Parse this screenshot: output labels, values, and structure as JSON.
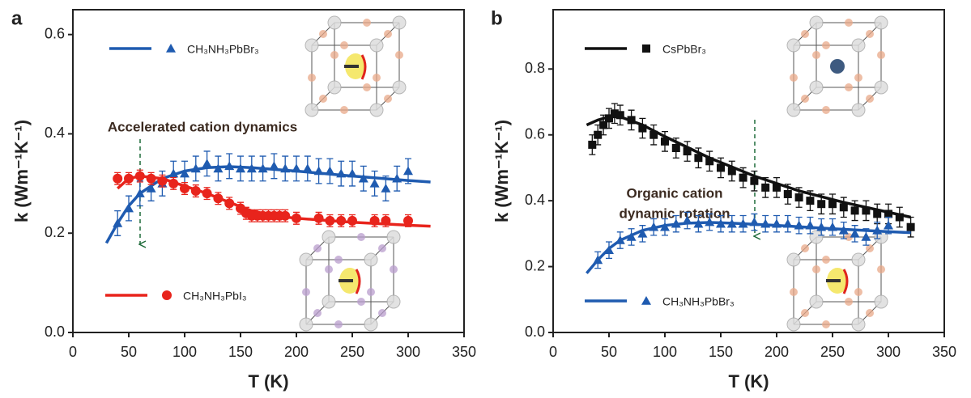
{
  "chart_data": [
    {
      "type": "scatter",
      "panel": "a",
      "xlabel": "T (K)",
      "ylabel": "k (Wm⁻¹K⁻¹)",
      "xlim": [
        0,
        350
      ],
      "xticks": [
        0,
        50,
        100,
        150,
        200,
        250,
        300,
        350
      ],
      "ylim": [
        0,
        0.65
      ],
      "yticks": [
        {
          "value": 0,
          "label": "0.0"
        },
        {
          "value": 0.2,
          "label": "0.2"
        },
        {
          "value": 0.4,
          "label": "0.4"
        },
        {
          "value": 0.6,
          "label": "0.6"
        }
      ],
      "annotation": [
        "Accelerated cation dynamics"
      ],
      "series": [
        {
          "name": "CH₃NH₃PbBr₃",
          "color": "#1f5bb0",
          "marker": "triangle",
          "x": [
            40,
            50,
            60,
            70,
            80,
            90,
            100,
            110,
            120,
            130,
            140,
            150,
            160,
            170,
            180,
            190,
            200,
            210,
            220,
            230,
            240,
            250,
            260,
            270,
            280,
            290,
            300
          ],
          "values": [
            0.22,
            0.25,
            0.28,
            0.29,
            0.3,
            0.32,
            0.32,
            0.33,
            0.34,
            0.33,
            0.335,
            0.33,
            0.33,
            0.33,
            0.335,
            0.33,
            0.33,
            0.33,
            0.325,
            0.325,
            0.32,
            0.32,
            0.31,
            0.3,
            0.29,
            0.31,
            0.325
          ],
          "errors": [
            0.025,
            0.025,
            0.025,
            0.025,
            0.025,
            0.025,
            0.025,
            0.025,
            0.025,
            0.025,
            0.025,
            0.025,
            0.025,
            0.025,
            0.025,
            0.025,
            0.025,
            0.025,
            0.025,
            0.025,
            0.025,
            0.025,
            0.025,
            0.025,
            0.025,
            0.025,
            0.025
          ],
          "fit": {
            "x": [
              30,
              40,
              50,
              60,
              80,
              100,
              120,
              140,
              160,
              200,
              250,
              300,
              320
            ],
            "values": [
              0.18,
              0.22,
              0.255,
              0.28,
              0.31,
              0.325,
              0.332,
              0.334,
              0.332,
              0.325,
              0.315,
              0.306,
              0.303
            ]
          }
        },
        {
          "name": "CH₃NH₃PbI₃",
          "color": "#e8241c",
          "marker": "circle",
          "x": [
            40,
            50,
            60,
            70,
            80,
            90,
            100,
            110,
            120,
            130,
            140,
            150,
            155,
            160,
            165,
            170,
            175,
            180,
            185,
            190,
            200,
            220,
            230,
            240,
            250,
            270,
            280,
            300
          ],
          "values": [
            0.31,
            0.31,
            0.315,
            0.31,
            0.305,
            0.3,
            0.29,
            0.285,
            0.28,
            0.27,
            0.26,
            0.25,
            0.24,
            0.235,
            0.235,
            0.235,
            0.235,
            0.235,
            0.235,
            0.235,
            0.23,
            0.23,
            0.225,
            0.225,
            0.225,
            0.225,
            0.225,
            0.225
          ],
          "errors": [
            0.012,
            0.012,
            0.012,
            0.012,
            0.012,
            0.012,
            0.012,
            0.012,
            0.012,
            0.012,
            0.012,
            0.012,
            0.012,
            0.012,
            0.012,
            0.012,
            0.012,
            0.012,
            0.012,
            0.012,
            0.012,
            0.012,
            0.012,
            0.012,
            0.012,
            0.012,
            0.012,
            0.012
          ],
          "fit": {
            "x": [
              40,
              50,
              60,
              80,
              100,
              120,
              140,
              160,
              180,
              200,
              250,
              300,
              320
            ],
            "values": [
              0.29,
              0.31,
              0.315,
              0.31,
              0.295,
              0.28,
              0.262,
              0.245,
              0.235,
              0.23,
              0.222,
              0.216,
              0.214
            ]
          }
        }
      ]
    },
    {
      "type": "scatter",
      "panel": "b",
      "xlabel": "T (K)",
      "ylabel": "k (Wm⁻¹K⁻¹)",
      "xlim": [
        0,
        350
      ],
      "xticks": [
        0,
        50,
        100,
        150,
        200,
        250,
        300,
        350
      ],
      "ylim": [
        0,
        0.98
      ],
      "yticks": [
        {
          "value": 0,
          "label": "0.0"
        },
        {
          "value": 0.2,
          "label": "0.2"
        },
        {
          "value": 0.4,
          "label": "0.4"
        },
        {
          "value": 0.6,
          "label": "0.6"
        },
        {
          "value": 0.8,
          "label": "0.8"
        }
      ],
      "annotation": [
        "Organic cation",
        "dynamic rotation"
      ],
      "series": [
        {
          "name": "CsPbBr₃",
          "color": "#111111",
          "marker": "square",
          "x": [
            35,
            40,
            45,
            50,
            55,
            60,
            70,
            80,
            90,
            100,
            110,
            120,
            130,
            140,
            150,
            160,
            170,
            180,
            190,
            200,
            210,
            220,
            230,
            240,
            250,
            260,
            270,
            280,
            290,
            300,
            310,
            320
          ],
          "values": [
            0.57,
            0.6,
            0.63,
            0.65,
            0.665,
            0.66,
            0.645,
            0.62,
            0.6,
            0.58,
            0.56,
            0.55,
            0.53,
            0.52,
            0.5,
            0.49,
            0.47,
            0.46,
            0.44,
            0.44,
            0.42,
            0.41,
            0.4,
            0.39,
            0.39,
            0.38,
            0.37,
            0.37,
            0.36,
            0.36,
            0.35,
            0.32
          ],
          "errors": [
            0.03,
            0.03,
            0.03,
            0.03,
            0.03,
            0.03,
            0.03,
            0.03,
            0.03,
            0.03,
            0.03,
            0.03,
            0.03,
            0.03,
            0.03,
            0.03,
            0.03,
            0.03,
            0.03,
            0.03,
            0.03,
            0.03,
            0.03,
            0.03,
            0.03,
            0.03,
            0.03,
            0.03,
            0.03,
            0.03,
            0.03,
            0.03
          ],
          "fit": {
            "x": [
              30,
              40,
              50,
              60,
              80,
              100,
              140,
              180,
              220,
              260,
              300,
              320
            ],
            "values": [
              0.63,
              0.645,
              0.655,
              0.655,
              0.63,
              0.595,
              0.53,
              0.475,
              0.43,
              0.395,
              0.365,
              0.35
            ]
          }
        },
        {
          "name": "CH₃NH₃PbBr₃",
          "color": "#1f5bb0",
          "marker": "triangle",
          "x": [
            40,
            50,
            60,
            70,
            80,
            90,
            100,
            110,
            120,
            130,
            140,
            150,
            160,
            170,
            180,
            190,
            200,
            210,
            220,
            230,
            240,
            250,
            260,
            270,
            280,
            290,
            300
          ],
          "values": [
            0.22,
            0.25,
            0.28,
            0.29,
            0.3,
            0.32,
            0.32,
            0.33,
            0.34,
            0.33,
            0.335,
            0.33,
            0.33,
            0.33,
            0.335,
            0.33,
            0.33,
            0.33,
            0.325,
            0.325,
            0.32,
            0.32,
            0.31,
            0.3,
            0.29,
            0.31,
            0.325
          ],
          "errors": [
            0.025,
            0.025,
            0.025,
            0.025,
            0.025,
            0.025,
            0.025,
            0.025,
            0.025,
            0.025,
            0.025,
            0.025,
            0.025,
            0.025,
            0.025,
            0.025,
            0.025,
            0.025,
            0.025,
            0.025,
            0.025,
            0.025,
            0.025,
            0.025,
            0.025,
            0.025,
            0.025
          ],
          "fit": {
            "x": [
              30,
              40,
              50,
              60,
              80,
              100,
              120,
              140,
              160,
              200,
              250,
              300,
              320
            ],
            "values": [
              0.18,
              0.22,
              0.255,
              0.28,
              0.31,
              0.325,
              0.332,
              0.334,
              0.332,
              0.325,
              0.315,
              0.306,
              0.303
            ]
          }
        }
      ]
    }
  ]
}
